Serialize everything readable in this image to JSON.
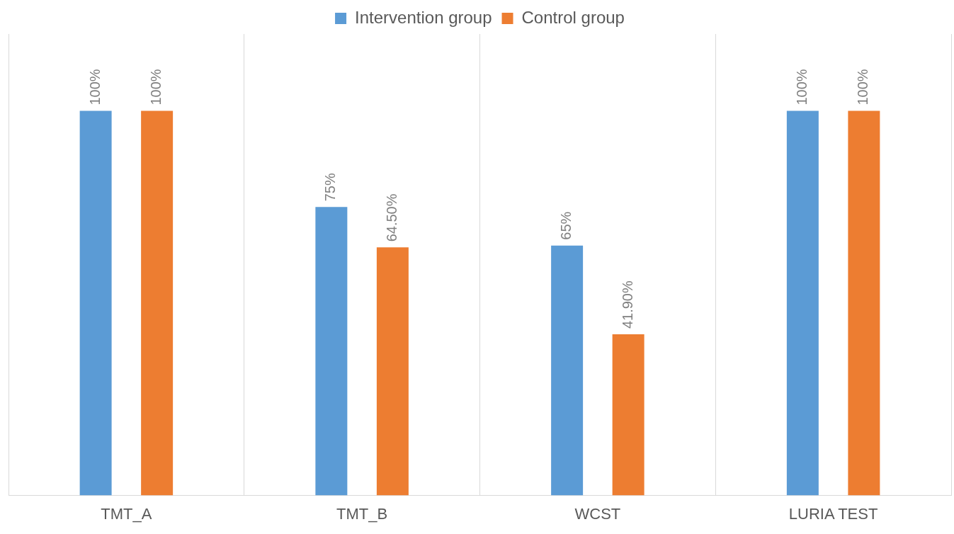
{
  "chart_data": {
    "type": "bar",
    "categories": [
      "TMT_A",
      "TMT_B",
      "WCST",
      "LURIA TEST"
    ],
    "series": [
      {
        "name": "Intervention group",
        "color": "#5b9bd5",
        "values": [
          100,
          75,
          65,
          100
        ],
        "value_labels": [
          "100%",
          "75%",
          "65%",
          "100%"
        ]
      },
      {
        "name": "Control group",
        "color": "#ed7d31",
        "values": [
          100,
          64.5,
          41.9,
          100
        ],
        "value_labels": [
          "100%",
          "64.50%",
          "41.90%",
          "100%"
        ]
      }
    ],
    "ylim": [
      0,
      120
    ],
    "tick_labels": "x",
    "grid": "x",
    "legend": "top"
  }
}
